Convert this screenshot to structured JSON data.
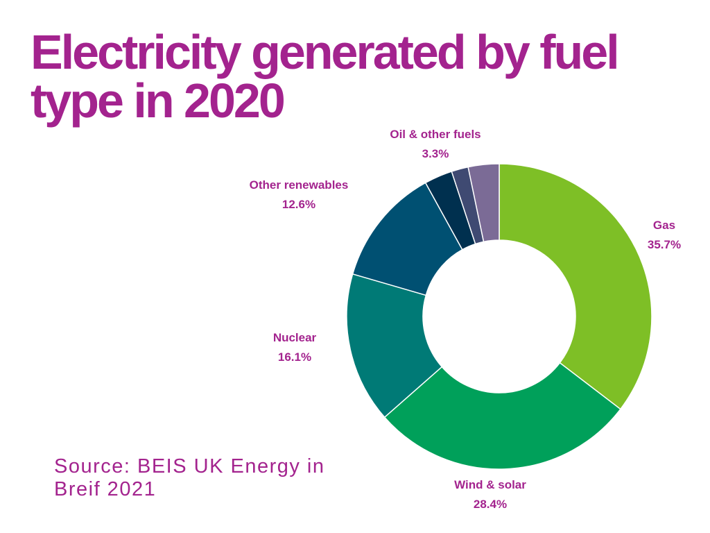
{
  "title": "Electricity generated by fuel type in 2020",
  "source": "Source: BEIS UK Energy in Breif 2021",
  "colors": {
    "accent": "#a3238e",
    "gas": "#7ebf26",
    "wind_solar": "#00a05a",
    "nuclear": "#007a76",
    "other_renewables": "#005072",
    "dark1": "#00304f",
    "dark2": "#3f4a72",
    "oil_other": "#7b6b96"
  },
  "chart_data": {
    "type": "pie",
    "donut": true,
    "title": "Electricity generated by fuel type in 2020",
    "slices": [
      {
        "label": "Gas",
        "value": 35.7,
        "value_label": "35.7%",
        "color_key": "gas"
      },
      {
        "label": "Wind & solar",
        "value": 28.4,
        "value_label": "28.4%",
        "color_key": "wind_solar"
      },
      {
        "label": "Nuclear",
        "value": 16.1,
        "value_label": "16.1%",
        "color_key": "nuclear"
      },
      {
        "label": "Other renewables",
        "value": 12.6,
        "value_label": "12.6%",
        "color_key": "other_renewables"
      },
      {
        "label": "",
        "value": 3.0,
        "value_label": "",
        "color_key": "dark1"
      },
      {
        "label": "",
        "value": 1.8,
        "value_label": "",
        "color_key": "dark2"
      },
      {
        "label": "Oil & other fuels",
        "value": 3.3,
        "value_label": "3.3%",
        "color_key": "oil_other"
      }
    ]
  }
}
